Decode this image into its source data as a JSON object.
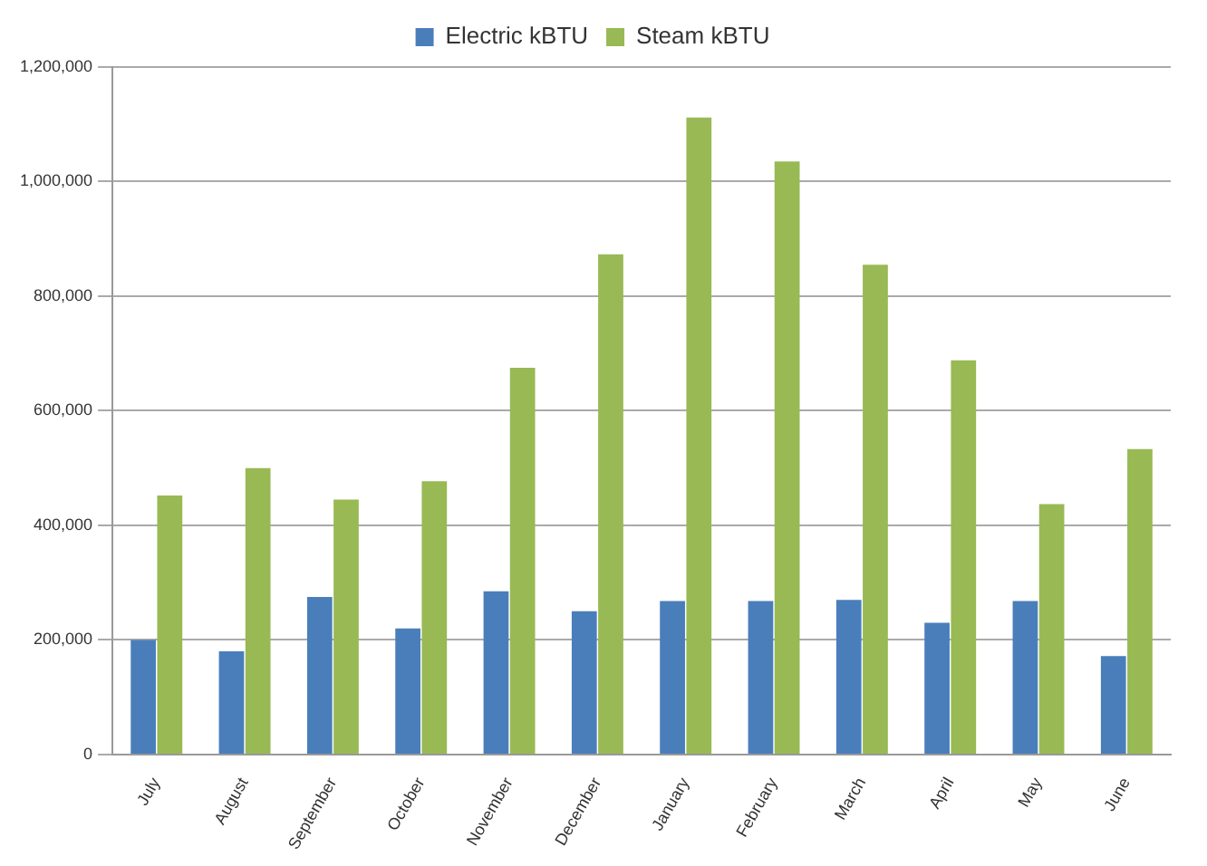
{
  "chart_data": {
    "type": "bar",
    "categories": [
      "July",
      "August",
      "September",
      "October",
      "November",
      "December",
      "January",
      "February",
      "March",
      "April",
      "May",
      "June"
    ],
    "series": [
      {
        "name": "Electric kBTU",
        "color": "#4a7ebb",
        "values": [
          200000,
          180000,
          275000,
          220000,
          285000,
          250000,
          268000,
          268000,
          270000,
          230000,
          268000,
          172000
        ]
      },
      {
        "name": "Steam kBTU",
        "color": "#98b954",
        "values": [
          452000,
          500000,
          445000,
          477000,
          675000,
          873000,
          1112000,
          1035000,
          855000,
          688000,
          437000,
          533000
        ]
      }
    ],
    "ylim": [
      0,
      1200000
    ],
    "yticks": [
      0,
      {
        "value": 200000,
        "label": "200,000"
      },
      {
        "value": 400000,
        "label": "400,000"
      },
      {
        "value": 600000,
        "label": "600,000"
      },
      {
        "value": 800000,
        "label": "800,000"
      },
      {
        "value": 1000000,
        "label": "1,000,000"
      },
      {
        "value": 1200000,
        "label": "1,200,000"
      }
    ],
    "grid": "y",
    "legend": "top"
  }
}
